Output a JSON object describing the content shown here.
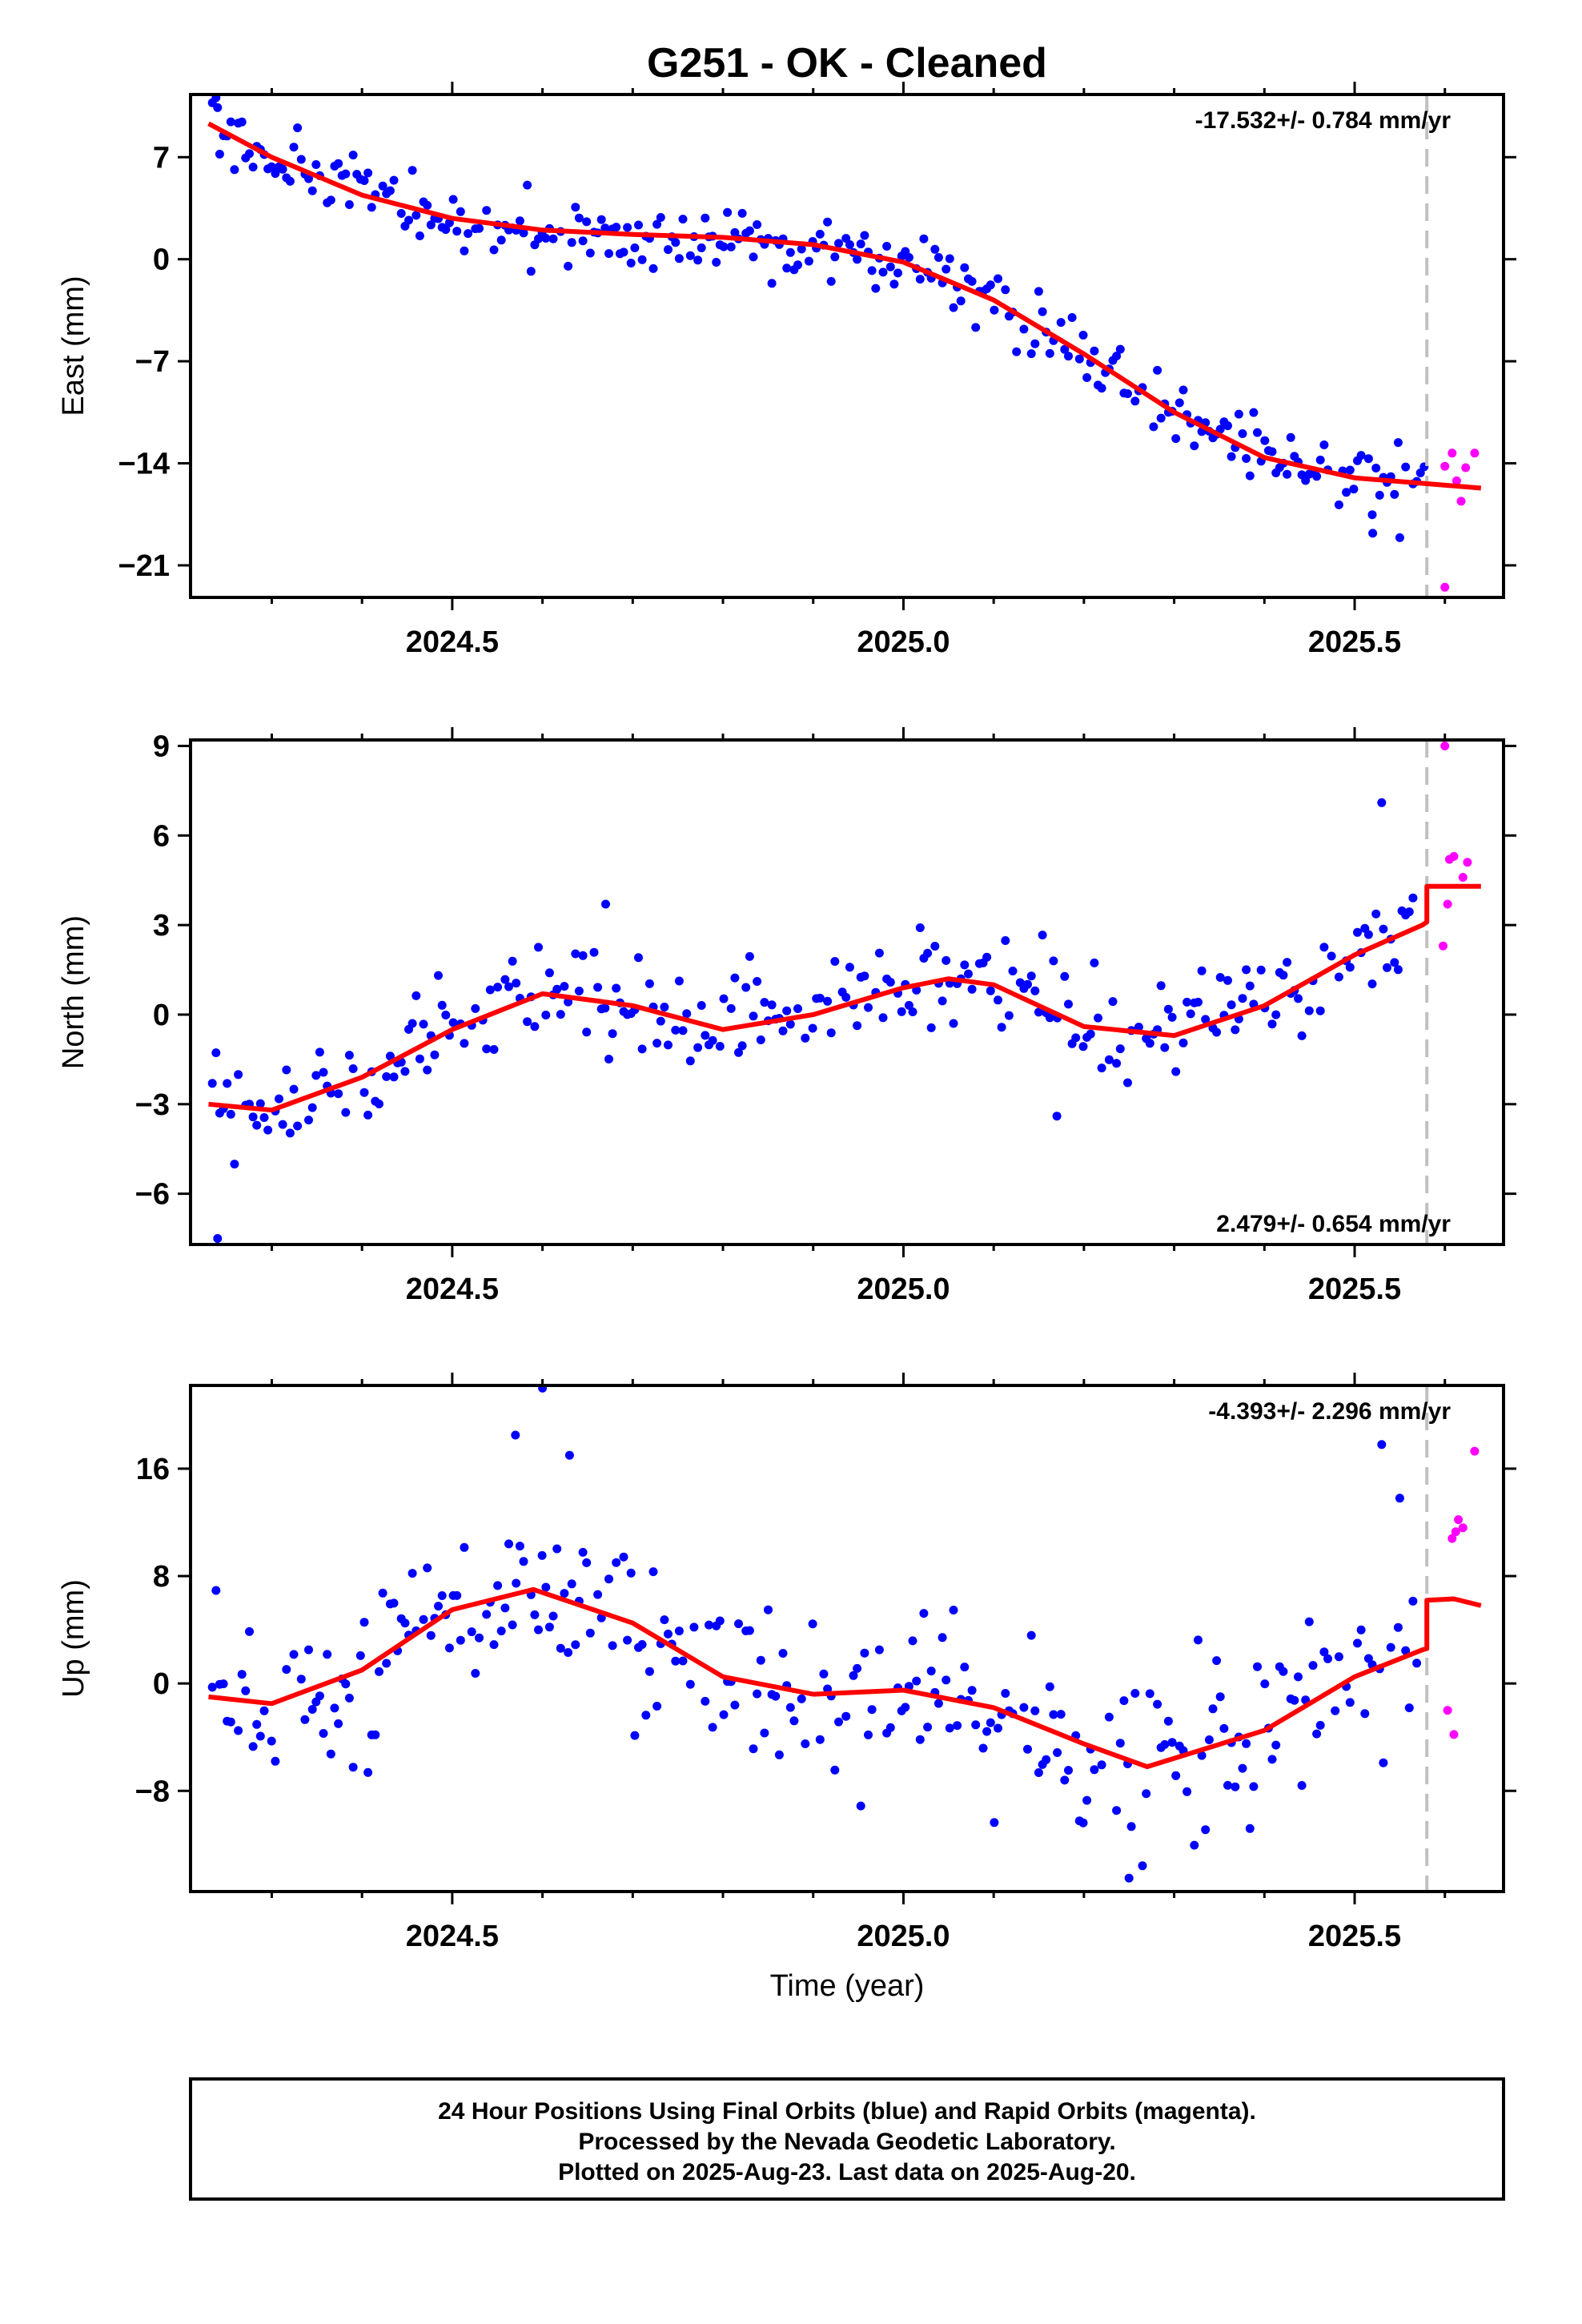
{
  "title": "G251  - OK - Cleaned",
  "xlabel": "Time (year)",
  "footer": {
    "line1": "24 Hour Positions Using Final Orbits (blue) and Rapid Orbits (magenta).",
    "line2": "Processed by the Nevada Geodetic Laboratory.",
    "line3": "Plotted on 2025-Aug-23. Last data on 2025-Aug-20."
  },
  "colors": {
    "final_points": "#0000ff",
    "rapid_points": "#ff00ff",
    "model_line": "#ff0000",
    "cutoff_line": "#c0c0c0"
  },
  "chart_data": [
    {
      "type": "scatter",
      "component": "east",
      "ylabel": "East (mm)",
      "rate_text": "-17.532+/- 0.784 mm/yr",
      "rate_position": "top-right",
      "xlim": [
        2024.21,
        2025.665
      ],
      "ylim": [
        -23.2,
        11.3
      ],
      "xticks": [
        2024.5,
        2025.0,
        2025.5
      ],
      "xtick_labels": [
        "2024.5",
        "2025.0",
        "2025.5"
      ],
      "yticks": [
        7,
        0,
        -7,
        -14,
        -21
      ],
      "ytick_labels": [
        "7",
        "0",
        "−7",
        "−14",
        "−21"
      ],
      "cutoff_x": 2025.58,
      "series": [
        {
          "kind": "final",
          "trend": [
            [
              2024.23,
              9.3
            ],
            [
              2024.3,
              7.0
            ],
            [
              2024.4,
              4.4
            ],
            [
              2024.5,
              2.8
            ],
            [
              2024.6,
              2.0
            ],
            [
              2024.7,
              1.7
            ],
            [
              2024.8,
              1.5
            ],
            [
              2024.9,
              1.0
            ],
            [
              2025.0,
              -0.2
            ],
            [
              2025.1,
              -2.8
            ],
            [
              2025.2,
              -6.5
            ],
            [
              2025.3,
              -10.5
            ],
            [
              2025.4,
              -13.6
            ],
            [
              2025.5,
              -15.0
            ],
            [
              2025.58,
              -15.4
            ]
          ],
          "noise": 1.2,
          "step_days": 1.5,
          "outliers": [
            [
              2024.24,
              10.4
            ],
            [
              2025.55,
              -19.1
            ],
            [
              2025.52,
              -18.8
            ]
          ]
        },
        {
          "kind": "rapid",
          "points": [
            [
              2025.6,
              -14.2
            ],
            [
              2025.608,
              -13.3
            ],
            [
              2025.613,
              -15.2
            ],
            [
              2025.618,
              -16.6
            ],
            [
              2025.623,
              -14.3
            ],
            [
              2025.633,
              -13.3
            ],
            [
              2025.6,
              -22.5
            ]
          ]
        }
      ],
      "model": [
        [
          2024.23,
          9.3
        ],
        [
          2024.3,
          7.0
        ],
        [
          2024.4,
          4.4
        ],
        [
          2024.5,
          2.8
        ],
        [
          2024.6,
          2.0
        ],
        [
          2024.7,
          1.7
        ],
        [
          2024.8,
          1.5
        ],
        [
          2024.9,
          1.0
        ],
        [
          2025.0,
          -0.2
        ],
        [
          2025.1,
          -2.8
        ],
        [
          2025.2,
          -6.5
        ],
        [
          2025.3,
          -10.5
        ],
        [
          2025.4,
          -13.6
        ],
        [
          2025.5,
          -15.0
        ],
        [
          2025.58,
          -15.4
        ],
        [
          2025.64,
          -15.7
        ]
      ]
    },
    {
      "type": "scatter",
      "component": "north",
      "ylabel": "North (mm)",
      "rate_text": "2.479+/- 0.654 mm/yr",
      "rate_position": "bottom-right",
      "xlim": [
        2024.21,
        2025.665
      ],
      "ylim": [
        -7.7,
        9.2
      ],
      "xticks": [
        2024.5,
        2025.0,
        2025.5
      ],
      "xtick_labels": [
        "2024.5",
        "2025.0",
        "2025.5"
      ],
      "yticks": [
        9,
        6,
        3,
        0,
        -3,
        -6
      ],
      "ytick_labels": [
        "9",
        "6",
        "3",
        "0",
        "−3",
        "−6"
      ],
      "cutoff_x": 2025.58,
      "series": [
        {
          "kind": "final",
          "trend": [
            [
              2024.23,
              -3.0
            ],
            [
              2024.3,
              -3.2
            ],
            [
              2024.4,
              -2.1
            ],
            [
              2024.5,
              -0.5
            ],
            [
              2024.6,
              0.7
            ],
            [
              2024.7,
              0.3
            ],
            [
              2024.8,
              -0.5
            ],
            [
              2024.9,
              0.0
            ],
            [
              2025.0,
              0.9
            ],
            [
              2025.05,
              1.2
            ],
            [
              2025.1,
              1.0
            ],
            [
              2025.2,
              -0.4
            ],
            [
              2025.3,
              -0.7
            ],
            [
              2025.4,
              0.3
            ],
            [
              2025.5,
              2.0
            ],
            [
              2025.57,
              3.0
            ]
          ],
          "noise": 0.85,
          "step_days": 1.5,
          "outliers": [
            [
              2024.24,
              -7.5
            ],
            [
              2025.53,
              7.1
            ],
            [
              2024.67,
              3.7
            ],
            [
              2025.17,
              -3.4
            ]
          ]
        },
        {
          "kind": "rapid",
          "points": [
            [
              2025.6,
              9.0
            ],
            [
              2025.598,
              2.3
            ],
            [
              2025.605,
              5.2
            ],
            [
              2025.61,
              5.3
            ],
            [
              2025.62,
              4.6
            ],
            [
              2025.625,
              5.1
            ],
            [
              2025.603,
              3.7
            ]
          ]
        }
      ],
      "model": [
        [
          2024.23,
          -3.0
        ],
        [
          2024.3,
          -3.2
        ],
        [
          2024.4,
          -2.1
        ],
        [
          2024.5,
          -0.5
        ],
        [
          2024.6,
          0.7
        ],
        [
          2024.7,
          0.3
        ],
        [
          2024.8,
          -0.5
        ],
        [
          2024.9,
          0.0
        ],
        [
          2025.0,
          0.9
        ],
        [
          2025.05,
          1.2
        ],
        [
          2025.1,
          1.0
        ],
        [
          2025.2,
          -0.4
        ],
        [
          2025.3,
          -0.7
        ],
        [
          2025.4,
          0.3
        ],
        [
          2025.5,
          2.0
        ],
        [
          2025.575,
          3.0
        ],
        [
          2025.58,
          3.1
        ],
        [
          2025.58,
          4.3
        ],
        [
          2025.64,
          4.3
        ]
      ]
    },
    {
      "type": "scatter",
      "component": "up",
      "ylabel": "Up (mm)",
      "rate_text": "-4.393+/- 2.296 mm/yr",
      "rate_position": "top-right",
      "xlim": [
        2024.21,
        2025.665
      ],
      "ylim": [
        -15.5,
        22.2
      ],
      "xticks": [
        2024.5,
        2025.0,
        2025.5
      ],
      "xtick_labels": [
        "2024.5",
        "2025.0",
        "2025.5"
      ],
      "yticks": [
        16,
        8,
        0,
        -8
      ],
      "ytick_labels": [
        "16",
        "8",
        "0",
        "−8"
      ],
      "cutoff_x": 2025.58,
      "series": [
        {
          "kind": "final",
          "trend": [
            [
              2024.23,
              -1.0
            ],
            [
              2024.3,
              -1.5
            ],
            [
              2024.4,
              1.0
            ],
            [
              2024.5,
              5.5
            ],
            [
              2024.59,
              7.0
            ],
            [
              2024.7,
              4.5
            ],
            [
              2024.8,
              0.5
            ],
            [
              2024.9,
              -0.8
            ],
            [
              2025.0,
              -0.5
            ],
            [
              2025.1,
              -1.8
            ],
            [
              2025.2,
              -4.5
            ],
            [
              2025.27,
              -6.2
            ],
            [
              2025.4,
              -3.5
            ],
            [
              2025.5,
              0.5
            ],
            [
              2025.57,
              2.5
            ]
          ],
          "noise": 3.2,
          "step_days": 1.5,
          "outliers": [
            [
              2024.6,
              22.0
            ],
            [
              2024.57,
              18.5
            ],
            [
              2025.53,
              17.8
            ],
            [
              2025.55,
              13.8
            ],
            [
              2025.25,
              -14.5
            ],
            [
              2024.63,
              17.0
            ]
          ]
        },
        {
          "kind": "rapid",
          "points": [
            [
              2025.603,
              -2.0
            ],
            [
              2025.61,
              -3.8
            ],
            [
              2025.608,
              10.8
            ],
            [
              2025.612,
              11.3
            ],
            [
              2025.615,
              12.2
            ],
            [
              2025.62,
              11.6
            ],
            [
              2025.633,
              17.3
            ]
          ]
        }
      ],
      "model": [
        [
          2024.23,
          -1.0
        ],
        [
          2024.3,
          -1.5
        ],
        [
          2024.4,
          1.0
        ],
        [
          2024.5,
          5.5
        ],
        [
          2024.59,
          7.0
        ],
        [
          2024.7,
          4.5
        ],
        [
          2024.8,
          0.5
        ],
        [
          2024.9,
          -0.8
        ],
        [
          2025.0,
          -0.5
        ],
        [
          2025.1,
          -1.8
        ],
        [
          2025.2,
          -4.5
        ],
        [
          2025.27,
          -6.2
        ],
        [
          2025.4,
          -3.5
        ],
        [
          2025.5,
          0.5
        ],
        [
          2025.575,
          2.5
        ],
        [
          2025.58,
          2.6
        ],
        [
          2025.58,
          6.2
        ],
        [
          2025.61,
          6.3
        ],
        [
          2025.64,
          5.8
        ]
      ]
    }
  ]
}
